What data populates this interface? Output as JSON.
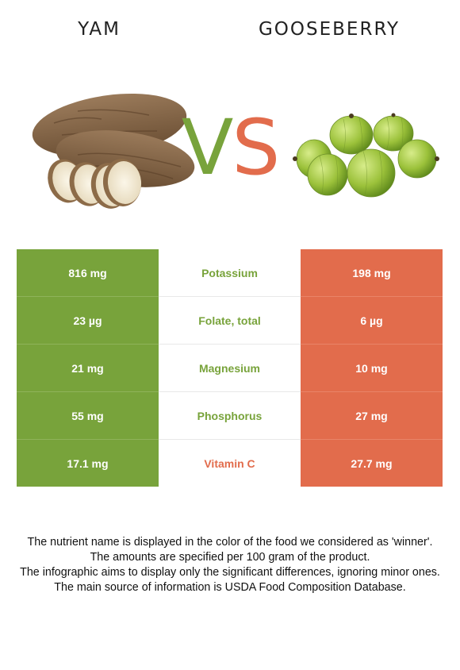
{
  "left_food": {
    "name": "YAM"
  },
  "right_food": {
    "name": "GOOSEBERRY"
  },
  "vs": {
    "v": "V",
    "s": "S"
  },
  "colors": {
    "left": "#78a33b",
    "right": "#e26c4c"
  },
  "nutrients": [
    {
      "name": "Potassium",
      "left": "816 mg",
      "right": "198 mg",
      "winner": "left"
    },
    {
      "name": "Folate, total",
      "left": "23 µg",
      "right": "6 µg",
      "winner": "left"
    },
    {
      "name": "Magnesium",
      "left": "21 mg",
      "right": "10 mg",
      "winner": "left"
    },
    {
      "name": "Phosphorus",
      "left": "55 mg",
      "right": "27 mg",
      "winner": "left"
    },
    {
      "name": "Vitamin C",
      "left": "17.1 mg",
      "right": "27.7 mg",
      "winner": "right"
    }
  ],
  "footer": [
    "The nutrient name is displayed in the color of the food we considered as 'winner'.",
    "The amounts are specified per 100 gram of the product.",
    "The infographic aims to display only the significant differences, ignoring minor ones.",
    "The main source of information is USDA Food Composition Database."
  ]
}
